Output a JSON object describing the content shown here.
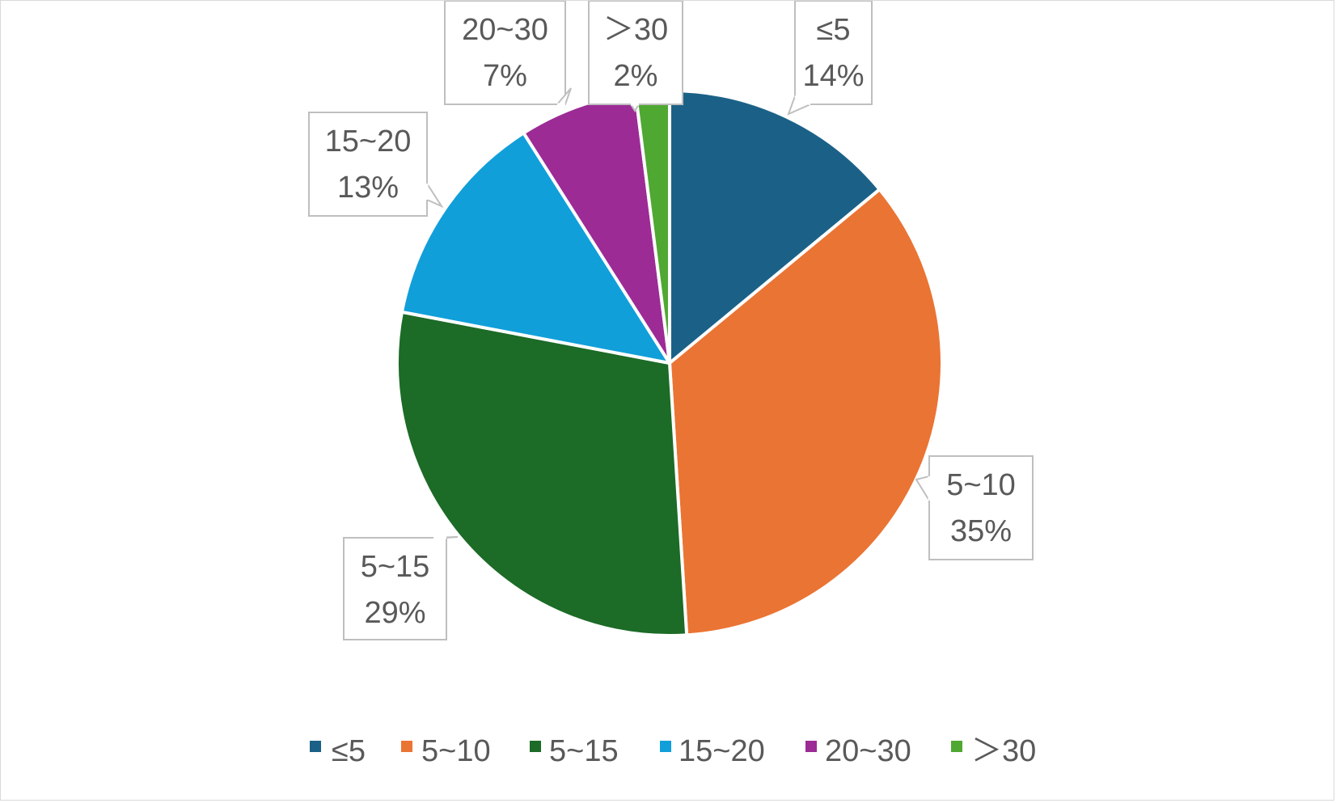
{
  "chart_data": {
    "type": "pie",
    "categories": [
      "≤5",
      "5~10",
      "5~15",
      "15~20",
      "20~30",
      "＞30"
    ],
    "values": [
      14,
      35,
      29,
      13,
      7,
      2
    ],
    "value_labels": [
      "14%",
      "35%",
      "29%",
      "13%",
      "7%",
      "2%"
    ],
    "colors": [
      "#1b6187",
      "#ea7434",
      "#1c6b27",
      "#119fda",
      "#9c2b96",
      "#4fa832"
    ],
    "title": "",
    "legend_position": "bottom",
    "data_labels": "callout boxes showing category and percentage"
  }
}
